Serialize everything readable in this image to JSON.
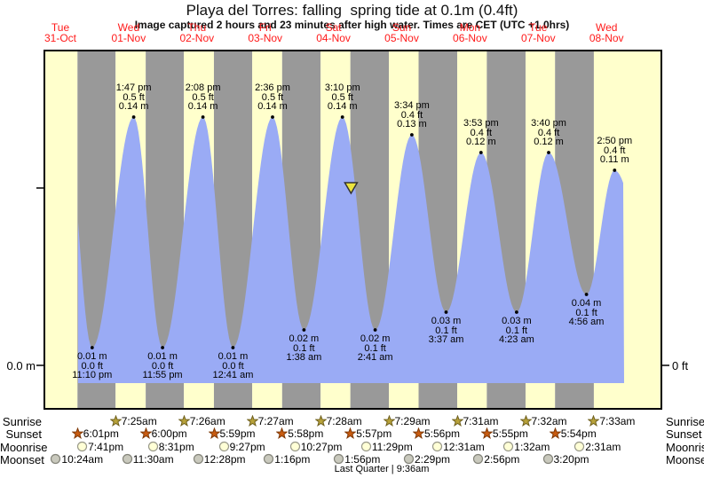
{
  "header": {
    "title": "Playa del Torres: falling  spring tide at 0.1m (0.4ft)",
    "subtitle": "Image captured 2 hours and 23 minutes after high water. Times are CET (UTC +1.0hrs)"
  },
  "axes": {
    "left_tick_label": "0.0 m",
    "right_tick_label": "0 ft"
  },
  "days": [
    {
      "weekday": "Tue",
      "date": "31-Oct"
    },
    {
      "weekday": "Wed",
      "date": "01-Nov"
    },
    {
      "weekday": "Thu",
      "date": "02-Nov"
    },
    {
      "weekday": "Fri",
      "date": "03-Nov"
    },
    {
      "weekday": "Sat",
      "date": "04-Nov"
    },
    {
      "weekday": "Sun",
      "date": "05-Nov"
    },
    {
      "weekday": "Mon",
      "date": "06-Nov"
    },
    {
      "weekday": "Tue",
      "date": "07-Nov"
    },
    {
      "weekday": "Wed",
      "date": "08-Nov"
    }
  ],
  "chart_data": {
    "type": "area",
    "title": "Playa del Torres tide height",
    "x_categories": [
      "Tue 31-Oct",
      "Wed 01-Nov",
      "Thu 02-Nov",
      "Fri 03-Nov",
      "Sat 04-Nov",
      "Sun 05-Nov",
      "Mon 06-Nov",
      "Tue 07-Nov",
      "Wed 08-Nov"
    ],
    "y_axis": {
      "left_label": "0.0 m",
      "right_label": "0 ft",
      "units": [
        "m",
        "ft"
      ]
    },
    "high_tides": [
      {
        "day_index": 1,
        "time": "1:47 pm",
        "ft_label": "0.5 ft",
        "m_label": "0.14 m",
        "meters": 0.14
      },
      {
        "day_index": 2,
        "time": "2:08 pm",
        "ft_label": "0.5 ft",
        "m_label": "0.14 m",
        "meters": 0.14
      },
      {
        "day_index": 3,
        "time": "2:36 pm",
        "ft_label": "0.5 ft",
        "m_label": "0.14 m",
        "meters": 0.14
      },
      {
        "day_index": 4,
        "time": "3:10 pm",
        "ft_label": "0.5 ft",
        "m_label": "0.14 m",
        "meters": 0.14
      },
      {
        "day_index": 5,
        "time": "3:34 pm",
        "ft_label": "0.4 ft",
        "m_label": "0.13 m",
        "meters": 0.13
      },
      {
        "day_index": 6,
        "time": "3:53 pm",
        "ft_label": "0.4 ft",
        "m_label": "0.12 m",
        "meters": 0.12
      },
      {
        "day_index": 7,
        "time": "3:40 pm",
        "ft_label": "0.4 ft",
        "m_label": "0.12 m",
        "meters": 0.12
      },
      {
        "day_index": 8,
        "time": "2:50 pm",
        "ft_label": "0.4 ft",
        "m_label": "0.11 m",
        "meters": 0.11
      }
    ],
    "low_tides": [
      {
        "day_index": 0,
        "time": "11:10 pm",
        "ft_label": "0.0 ft",
        "m_label": "0.01 m",
        "meters": 0.01
      },
      {
        "day_index": 1,
        "time": "11:55 pm",
        "ft_label": "0.0 ft",
        "m_label": "0.01 m",
        "meters": 0.01
      },
      {
        "day_index": 3,
        "time": "12:41 am",
        "ft_label": "0.0 ft",
        "m_label": "0.01 m",
        "meters": 0.01
      },
      {
        "day_index": 4,
        "time": "1:38 am",
        "ft_label": "0.1 ft",
        "m_label": "0.02 m",
        "meters": 0.02
      },
      {
        "day_index": 5,
        "time": "2:41 am",
        "ft_label": "0.1 ft",
        "m_label": "0.02 m",
        "meters": 0.02
      },
      {
        "day_index": 6,
        "time": "3:37 am",
        "ft_label": "0.1 ft",
        "m_label": "0.03 m",
        "meters": 0.03
      },
      {
        "day_index": 7,
        "time": "4:23 am",
        "ft_label": "0.1 ft",
        "m_label": "0.03 m",
        "meters": 0.03
      },
      {
        "day_index": 8,
        "time": "4:56 am",
        "ft_label": "0.1 ft",
        "m_label": "0.04 m",
        "meters": 0.04
      }
    ],
    "now_marker": {
      "day_index": 4,
      "time": "5:33 pm",
      "meters": 0.1,
      "note": "falling spring tide at 0.1m (0.4ft)"
    },
    "colors": {
      "day_band": "#ffffcc",
      "night_band": "#999999",
      "tide_fill": "#9aabf5",
      "day_label": "#ff1a1a",
      "marker_fill": "#ece43e",
      "sunrise_star": "#b8a23a",
      "sunset_star": "#c95c10",
      "moonrise_circle": "#ffffd6",
      "moonset_circle": "#c9c9bd"
    }
  },
  "astro": {
    "rows": [
      {
        "label": "Sunrise",
        "icon": "sunrise-star-icon",
        "entries": [
          {
            "day_index": 1,
            "time": "7:25am"
          },
          {
            "day_index": 2,
            "time": "7:26am"
          },
          {
            "day_index": 3,
            "time": "7:27am"
          },
          {
            "day_index": 4,
            "time": "7:28am"
          },
          {
            "day_index": 5,
            "time": "7:29am"
          },
          {
            "day_index": 6,
            "time": "7:31am"
          },
          {
            "day_index": 7,
            "time": "7:32am"
          },
          {
            "day_index": 8,
            "time": "7:33am"
          }
        ]
      },
      {
        "label": "Sunset",
        "icon": "sunset-star-icon",
        "entries": [
          {
            "day_index": 0,
            "time": "6:01pm"
          },
          {
            "day_index": 1,
            "time": "6:00pm"
          },
          {
            "day_index": 2,
            "time": "5:59pm"
          },
          {
            "day_index": 3,
            "time": "5:58pm"
          },
          {
            "day_index": 4,
            "time": "5:57pm"
          },
          {
            "day_index": 5,
            "time": "5:56pm"
          },
          {
            "day_index": 6,
            "time": "5:55pm"
          },
          {
            "day_index": 7,
            "time": "5:54pm"
          }
        ]
      },
      {
        "label": "Moonrise",
        "icon": "moonrise-circle-icon",
        "entries": [
          {
            "day_index": 0,
            "time": "7:41pm"
          },
          {
            "day_index": 1,
            "time": "8:31pm"
          },
          {
            "day_index": 2,
            "time": "9:27pm"
          },
          {
            "day_index": 3,
            "time": "10:27pm"
          },
          {
            "day_index": 4,
            "time": "11:29pm"
          },
          {
            "day_index": 6,
            "time": "12:31am"
          },
          {
            "day_index": 7,
            "time": "1:32am"
          },
          {
            "day_index": 8,
            "time": "2:31am"
          }
        ]
      },
      {
        "label": "Moonset",
        "icon": "moonset-circle-icon",
        "entries": [
          {
            "day_index": 0,
            "time": "10:24am"
          },
          {
            "day_index": 1,
            "time": "11:30am"
          },
          {
            "day_index": 2,
            "time": "12:28pm"
          },
          {
            "day_index": 3,
            "time": "1:16pm"
          },
          {
            "day_index": 4,
            "time": "1:56pm"
          },
          {
            "day_index": 5,
            "time": "2:29pm"
          },
          {
            "day_index": 6,
            "time": "2:56pm"
          },
          {
            "day_index": 7,
            "time": "3:20pm"
          }
        ]
      }
    ],
    "moon_phase": "Last Quarter | 9:36am"
  }
}
